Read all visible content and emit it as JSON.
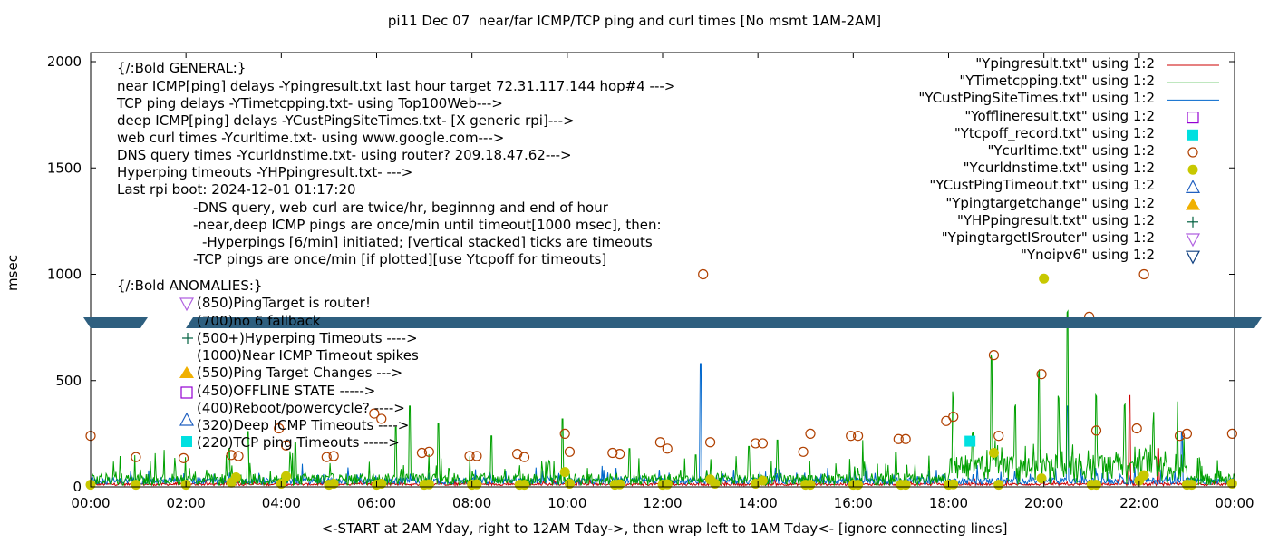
{
  "chart_data": {
    "type": "line",
    "title": "pi11 Dec 07  near/far ICMP/TCP ping and curl times [No msmt 1AM-2AM]",
    "xlabel": "<-START at 2AM Yday, right to 12AM Tday->, then wrap left to 1AM Tday<- [ignore connecting lines]",
    "ylabel": "msec",
    "xlim": [
      0,
      24
    ],
    "ylim": [
      0,
      2050
    ],
    "x_ticks": [
      "00:00",
      "02:00",
      "04:00",
      "06:00",
      "08:00",
      "10:00",
      "12:00",
      "14:00",
      "16:00",
      "18:00",
      "20:00",
      "22:00",
      "00:00"
    ],
    "y_ticks": [
      "0",
      "500",
      "1000",
      "1500",
      "2000"
    ],
    "y_tick_values": [
      0,
      500,
      1000,
      1500,
      2000
    ],
    "axis_break": {
      "y": 775,
      "note": "broken y-axis band"
    },
    "legend_placement": "top-right",
    "legend": [
      {
        "label": "\"Ypingresult.txt\" using 1:2",
        "marker": "line",
        "color": "#cc0000"
      },
      {
        "label": "\"YTimetcpping.txt\" using 1:2",
        "marker": "line",
        "color": "#00a000"
      },
      {
        "label": "\"YCustPingSiteTimes.txt\" using 1:2",
        "marker": "line",
        "color": "#0066cc"
      },
      {
        "label": "\"Yofflineresult.txt\" using 1:2",
        "marker": "open-square",
        "color": "#9400d3"
      },
      {
        "label": "\"Ytcpoff_record.txt\" using 1:2",
        "marker": "filled-square",
        "color": "#00e0e0"
      },
      {
        "label": "\"Ycurltime.txt\" using 1:2",
        "marker": "open-circle",
        "color": "#b04000"
      },
      {
        "label": "\"Ycurldnstime.txt\" using 1:2",
        "marker": "filled-circle",
        "color": "#c8c800"
      },
      {
        "label": "\"YCustPingTimeout.txt\" using 1:2",
        "marker": "open-triangle-up",
        "color": "#2060c0"
      },
      {
        "label": "\"Ypingtargetchange\" using 1:2",
        "marker": "filled-triangle-up",
        "color": "#f0b000"
      },
      {
        "label": "\"YHPpingresult.txt\" using 1:2",
        "marker": "plus",
        "color": "#006040"
      },
      {
        "label": "\"YpingtargetISrouter\" using 1:2",
        "marker": "open-triangle-down",
        "color": "#b060e0"
      },
      {
        "label": "\"Ynoipv6\" using 1:2",
        "marker": "open-triangle-down",
        "color": "#104080"
      }
    ],
    "series": [
      {
        "name": "\"Ycurltime.txt\" using 1:2",
        "marker": "open-circle",
        "x": [
          0.0,
          0.95,
          1.95,
          2.95,
          3.1,
          3.95,
          4.1,
          4.95,
          5.1,
          5.95,
          6.1,
          6.95,
          7.1,
          7.95,
          8.1,
          8.95,
          9.1,
          9.95,
          10.05,
          10.95,
          11.1,
          11.95,
          12.1,
          12.85,
          13.0,
          13.95,
          14.1,
          14.95,
          15.1,
          15.95,
          16.1,
          16.95,
          17.1,
          17.95,
          18.1,
          18.95,
          19.05,
          19.95,
          20.95,
          21.1,
          21.95,
          22.1,
          22.85,
          23.0,
          23.95
        ],
        "y": [
          240,
          140,
          135,
          150,
          145,
          275,
          195,
          140,
          145,
          345,
          320,
          160,
          165,
          145,
          145,
          155,
          140,
          250,
          165,
          160,
          155,
          210,
          180,
          1000,
          210,
          205,
          205,
          165,
          250,
          240,
          240,
          225,
          225,
          310,
          330,
          620,
          240,
          530,
          800,
          265,
          275,
          1000,
          240,
          250,
          250
        ]
      },
      {
        "name": "\"Ycurldnstime.txt\" using 1:2",
        "marker": "filled-circle",
        "x": [
          0.0,
          0.95,
          2.0,
          2.95,
          3.05,
          4.0,
          4.1,
          5.0,
          5.1,
          6.0,
          6.1,
          7.0,
          7.1,
          8.0,
          8.1,
          9.0,
          9.1,
          9.95,
          10.05,
          11.0,
          11.1,
          12.0,
          12.1,
          13.0,
          13.1,
          13.95,
          14.1,
          15.0,
          15.1,
          16.0,
          16.1,
          17.0,
          17.1,
          18.0,
          18.1,
          18.95,
          19.05,
          19.95,
          20.0,
          21.0,
          21.1,
          22.0,
          22.1,
          23.0,
          23.1,
          23.95
        ],
        "y": [
          10,
          10,
          10,
          20,
          45,
          15,
          50,
          10,
          15,
          10,
          15,
          10,
          12,
          10,
          12,
          10,
          10,
          70,
          15,
          10,
          12,
          10,
          12,
          35,
          15,
          15,
          30,
          10,
          10,
          10,
          10,
          10,
          10,
          10,
          12,
          160,
          10,
          40,
          980,
          10,
          10,
          30,
          55,
          10,
          10,
          15
        ]
      },
      {
        "name": "\"Ytcpoff_record.txt\" using 1:2",
        "marker": "filled-square",
        "x": [
          18.45
        ],
        "y": [
          215
        ]
      }
    ],
    "line_series": [
      {
        "name": "\"YTimetcpping.txt\" using 1:2",
        "color": "#00a000",
        "baseline": 35,
        "noise": 40,
        "spikes": [
          [
            2.9,
            180
          ],
          [
            3.3,
            260
          ],
          [
            4.3,
            210
          ],
          [
            6.4,
            280
          ],
          [
            6.7,
            380
          ],
          [
            7.3,
            300
          ],
          [
            8.4,
            240
          ],
          [
            9.9,
            320
          ],
          [
            11.3,
            180
          ],
          [
            12.7,
            150
          ],
          [
            13.8,
            190
          ],
          [
            14.4,
            220
          ],
          [
            16.2,
            220
          ],
          [
            16.9,
            160
          ],
          [
            18.1,
            340
          ],
          [
            18.5,
            230
          ],
          [
            18.9,
            580
          ],
          [
            19.4,
            370
          ],
          [
            19.9,
            480
          ],
          [
            20.3,
            410
          ],
          [
            20.5,
            720
          ],
          [
            21.1,
            360
          ],
          [
            21.7,
            340
          ],
          [
            22.3,
            260
          ],
          [
            22.8,
            300
          ]
        ]
      },
      {
        "name": "\"YCustPingSiteTimes.txt\" using 1:2",
        "color": "#0066cc",
        "baseline": 28,
        "noise": 22,
        "spikes": [
          [
            12.8,
            580
          ],
          [
            20.5,
            380
          ],
          [
            22.9,
            260
          ]
        ]
      },
      {
        "name": "\"Ypingresult.txt\" using 1:2",
        "color": "#cc0000",
        "baseline": 12,
        "noise": 8,
        "spikes": [
          [
            21.8,
            430
          ],
          [
            22.4,
            180
          ]
        ]
      }
    ],
    "annotations": [
      "{/:Bold GENERAL:}",
      "near ICMP[ping] delays -Ypingresult.txt last hour target 72.31.117.144 hop#4 --->",
      "TCP ping delays -YTimetcpping.txt- using Top100Web--->",
      "deep ICMP[ping] delays -YCustPingSiteTimes.txt- [X generic rpi]--->",
      "web curl times -Ycurltime.txt- using www.google.com--->",
      "DNS query times -Ycurldnstime.txt- using router? 209.18.47.62--->",
      "Hyperping timeouts -YHPpingresult.txt- --->",
      "Last rpi boot: 2024-12-01 01:17:20",
      "-DNS query, web curl are twice/hr, beginnng and end of hour",
      "-near,deep ICMP pings are once/min until timeout[1000 msec], then:",
      "-Hyperpings [6/min] initiated; [vertical stacked] ticks are timeouts",
      "-TCP pings are once/min [if plotted][use Ytcpoff for timeouts]",
      "{/:Bold ANOMALIES:}",
      "(850)PingTarget is router!",
      "(700)no 6 fallback",
      "(500+)Hyperping Timeouts ---->",
      "(1000)Near ICMP Timeout spikes",
      "(550)Ping Target Changes --->",
      "(450)OFFLINE STATE ----->",
      "(400)Reboot/powercycle? ---->",
      "(320)Deep ICMP Timeouts ---->",
      "(220)TCP ping Timeouts ----->"
    ]
  }
}
